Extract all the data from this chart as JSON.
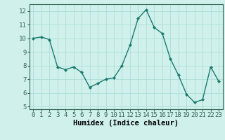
{
  "x": [
    0,
    1,
    2,
    3,
    4,
    5,
    6,
    7,
    8,
    9,
    10,
    11,
    12,
    13,
    14,
    15,
    16,
    17,
    18,
    19,
    20,
    21,
    22,
    23
  ],
  "y": [
    10.0,
    10.1,
    9.9,
    7.9,
    7.7,
    7.9,
    7.5,
    6.4,
    6.7,
    7.0,
    7.1,
    8.0,
    9.5,
    11.45,
    12.1,
    10.8,
    10.35,
    8.5,
    7.3,
    5.9,
    5.3,
    5.5,
    7.9,
    6.85
  ],
  "line_color": "#1a7a6e",
  "marker": "D",
  "marker_size": 2.0,
  "bg_color": "#cff0eb",
  "grid_color": "#aeddd8",
  "xlabel": "Humidex (Indice chaleur)",
  "xlim": [
    -0.5,
    23.5
  ],
  "ylim": [
    4.8,
    12.5
  ],
  "yticks": [
    5,
    6,
    7,
    8,
    9,
    10,
    11,
    12
  ],
  "xticks": [
    0,
    1,
    2,
    3,
    4,
    5,
    6,
    7,
    8,
    9,
    10,
    11,
    12,
    13,
    14,
    15,
    16,
    17,
    18,
    19,
    20,
    21,
    22,
    23
  ],
  "xlabel_fontsize": 7.5,
  "tick_fontsize": 6.5,
  "line_width": 1.0,
  "spine_color": "#336655"
}
